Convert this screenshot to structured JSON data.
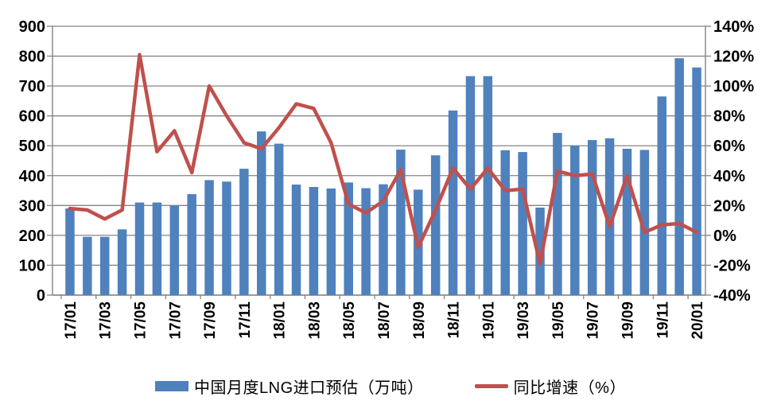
{
  "chart_data": {
    "type": "bar+line",
    "title": "",
    "categories": [
      "17/01",
      "17/02",
      "17/03",
      "17/04",
      "17/05",
      "17/06",
      "17/07",
      "17/08",
      "17/09",
      "17/10",
      "17/11",
      "17/12",
      "18/01",
      "18/02",
      "18/03",
      "18/04",
      "18/05",
      "18/06",
      "18/07",
      "18/08",
      "18/09",
      "18/10",
      "18/11",
      "18/12",
      "19/01",
      "19/02",
      "19/03",
      "19/04",
      "19/05",
      "19/06",
      "19/07",
      "19/08",
      "19/09",
      "19/10",
      "19/11",
      "19/12",
      "20/01"
    ],
    "series": [
      {
        "name": "中国月度LNG进口预估（万吨）",
        "type": "bar",
        "axis": "left",
        "values": [
          290,
          195,
          195,
          220,
          310,
          310,
          300,
          338,
          385,
          380,
          423,
          548,
          507,
          370,
          362,
          357,
          377,
          358,
          371,
          487,
          353,
          468,
          618,
          733,
          733,
          485,
          479,
          293,
          543,
          501,
          519,
          525,
          490,
          486,
          665,
          793,
          762
        ]
      },
      {
        "name": "同比增速（%）",
        "type": "line",
        "axis": "right",
        "values": [
          18,
          17,
          11,
          17,
          121,
          56,
          70,
          42,
          100,
          80,
          62,
          58,
          72,
          88,
          85,
          62,
          21,
          15,
          23,
          44,
          -8,
          17,
          45,
          31,
          45,
          30,
          31,
          -19,
          43,
          40,
          41,
          6,
          40,
          2,
          7,
          8,
          2
        ]
      }
    ],
    "left_axis": {
      "min": 0,
      "max": 900,
      "step": 100,
      "tick_labels": [
        "0",
        "100",
        "200",
        "300",
        "400",
        "500",
        "600",
        "700",
        "800",
        "900"
      ]
    },
    "right_axis": {
      "min": -40,
      "max": 140,
      "step": 20,
      "tick_labels": [
        "-40%",
        "-20%",
        "0%",
        "20%",
        "40%",
        "60%",
        "80%",
        "100%",
        "120%",
        "140%"
      ]
    },
    "x_tick_label_every": 2,
    "x_tick_labels_shown": [
      "17/01",
      "17/03",
      "17/05",
      "17/07",
      "17/09",
      "17/11",
      "18/01",
      "18/03",
      "18/05",
      "18/07",
      "18/09",
      "18/11",
      "19/01",
      "19/03",
      "19/05",
      "19/07",
      "19/09",
      "19/11",
      "20/01"
    ],
    "grid": true,
    "legend_position": "bottom"
  },
  "legend": {
    "items": [
      {
        "label": "中国月度LNG进口预估（万吨）",
        "swatch": "bar"
      },
      {
        "label": "同比增速（%）",
        "swatch": "line"
      }
    ]
  },
  "colors": {
    "bar": "#4F81BD",
    "line": "#C0504D",
    "grid": "#848484",
    "axis": "#848484",
    "text": "#000000",
    "background": "#FFFFFF"
  }
}
